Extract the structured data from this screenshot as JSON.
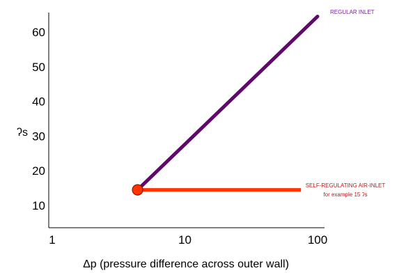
{
  "chart_data": {
    "type": "line",
    "title": "",
    "xlabel": "Δp (pressure difference across outer wall)",
    "ylabel": "ʔs",
    "x_scale": "log",
    "xlim": [
      1,
      100
    ],
    "ylim": [
      4,
      66
    ],
    "x_ticks": [
      1,
      10,
      100
    ],
    "x_tick_labels": [
      "1",
      "10",
      "100"
    ],
    "y_ticks": [
      10,
      20,
      30,
      40,
      50,
      60
    ],
    "y_tick_labels": [
      "10",
      "20",
      "30",
      "40",
      "50",
      "60"
    ],
    "grid": false,
    "series": [
      {
        "name": "REGULAR INLET",
        "color": "#5f0a6a",
        "x": [
          4.4,
          100
        ],
        "y": [
          14.5,
          64.5
        ]
      },
      {
        "name": "SELF-REGULATING AIR-INLET",
        "color": "#ff3300",
        "x": [
          4.4,
          75
        ],
        "y": [
          14.5,
          14.5
        ]
      }
    ],
    "point": {
      "x": 4.4,
      "y": 14.5,
      "fill": "#ff3300",
      "stroke": "#8b1a00"
    },
    "annotations": {
      "regular_inlet": "REGULAR  INLET",
      "regular_inlet_color": "#7b1fa2",
      "self_regulating_line1": "SELF-REGULATING AIR-INLET",
      "self_regulating_line2": "for example 15 ʔs",
      "self_regulating_color": "#b71c1c"
    }
  }
}
